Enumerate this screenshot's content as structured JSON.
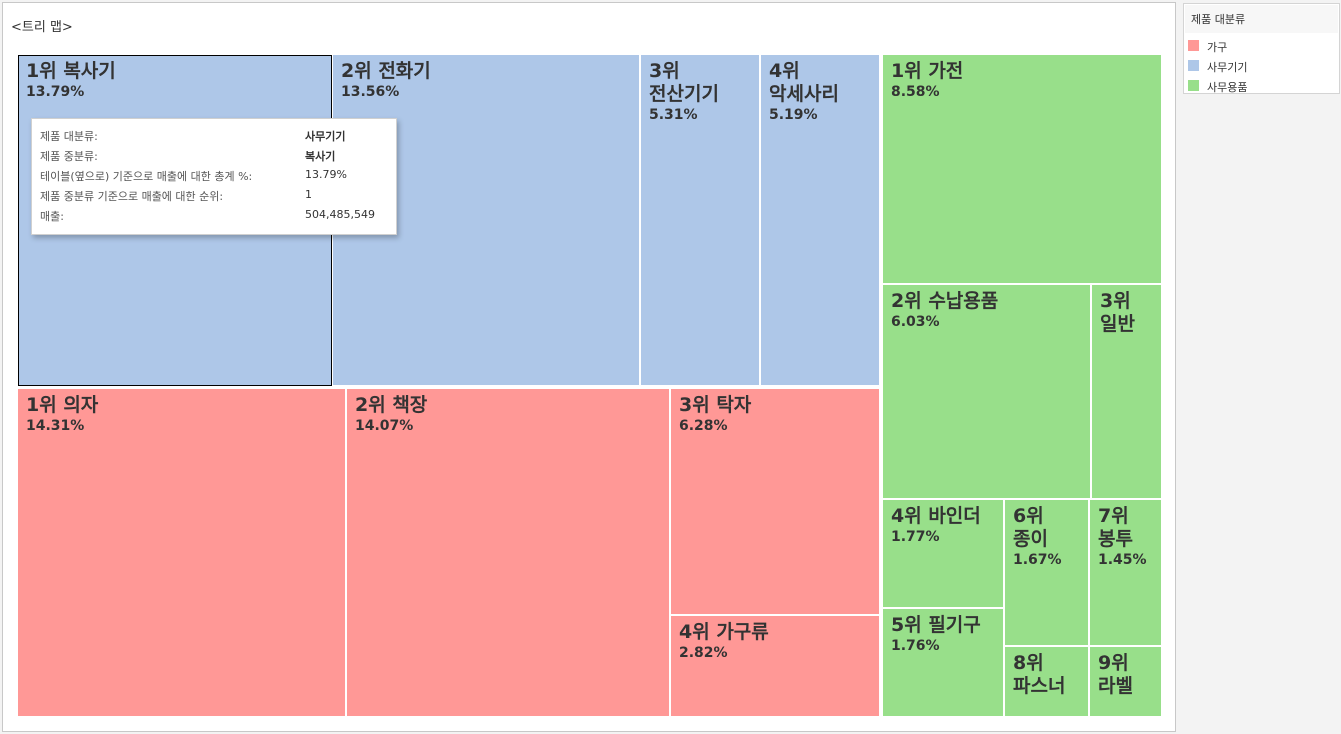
{
  "sheet_title": "<트리 맵>",
  "colors": {
    "가구": "#ff9896",
    "사무기기": "#aec7e8",
    "사무용품": "#98df8a"
  },
  "legend": {
    "title": "제품 대분류",
    "items": [
      {
        "label": "가구",
        "color": "#ff9896"
      },
      {
        "label": "사무기기",
        "color": "#aec7e8"
      },
      {
        "label": "사무용품",
        "color": "#98df8a"
      }
    ]
  },
  "tooltip": {
    "rows": [
      {
        "key": "제품 대분류:",
        "value": "사무기기",
        "strong": true
      },
      {
        "key": "제품 중분류:",
        "value": "복사기",
        "strong": true
      },
      {
        "key": "테이블(옆으로) 기준으로 매출에 대한 총계 %:",
        "value": "13.79%",
        "strong": false
      },
      {
        "key": "제품 중분류 기준으로 매출에 대한 순위:",
        "value": "1",
        "strong": false
      },
      {
        "key": "매출:",
        "value": "504,485,549",
        "strong": false
      }
    ]
  },
  "chart_data": {
    "type": "treemap",
    "title": "<트리 맵>",
    "legend_title": "제품 대분류",
    "legend_placement": "right",
    "selected": "1위 복사기",
    "groups": [
      {
        "name": "사무기기",
        "items": [
          {
            "label": "1위 복사기",
            "value": 13.79,
            "pct": "13.79%"
          },
          {
            "label": "2위 전화기",
            "value": 13.56,
            "pct": "13.56%"
          },
          {
            "label": "3위\n전산기기",
            "value": 5.31,
            "pct": "5.31%"
          },
          {
            "label": "4위\n악세사리",
            "value": 5.19,
            "pct": "5.19%"
          }
        ]
      },
      {
        "name": "가구",
        "items": [
          {
            "label": "1위 의자",
            "value": 14.31,
            "pct": "14.31%"
          },
          {
            "label": "2위 책장",
            "value": 14.07,
            "pct": "14.07%"
          },
          {
            "label": "3위 탁자",
            "value": 6.28,
            "pct": "6.28%"
          },
          {
            "label": "4위 가구류",
            "value": 2.82,
            "pct": "2.82%"
          }
        ]
      },
      {
        "name": "사무용품",
        "items": [
          {
            "label": "1위 가전",
            "value": 8.58,
            "pct": "8.58%"
          },
          {
            "label": "2위 수납용품",
            "value": 6.03,
            "pct": "6.03%"
          },
          {
            "label": "3위\n일반",
            "value": 2.45,
            "pct": ""
          },
          {
            "label": "4위 바인더",
            "value": 1.77,
            "pct": "1.77%"
          },
          {
            "label": "5위 필기구",
            "value": 1.76,
            "pct": "1.76%"
          },
          {
            "label": "6위\n종이",
            "value": 1.67,
            "pct": "1.67%"
          },
          {
            "label": "7위\n봉투",
            "value": 1.45,
            "pct": "1.45%"
          },
          {
            "label": "8위\n파스너",
            "value": 0.56,
            "pct": ""
          },
          {
            "label": "9위\n라벨",
            "value": 0.4,
            "pct": ""
          }
        ]
      }
    ]
  }
}
